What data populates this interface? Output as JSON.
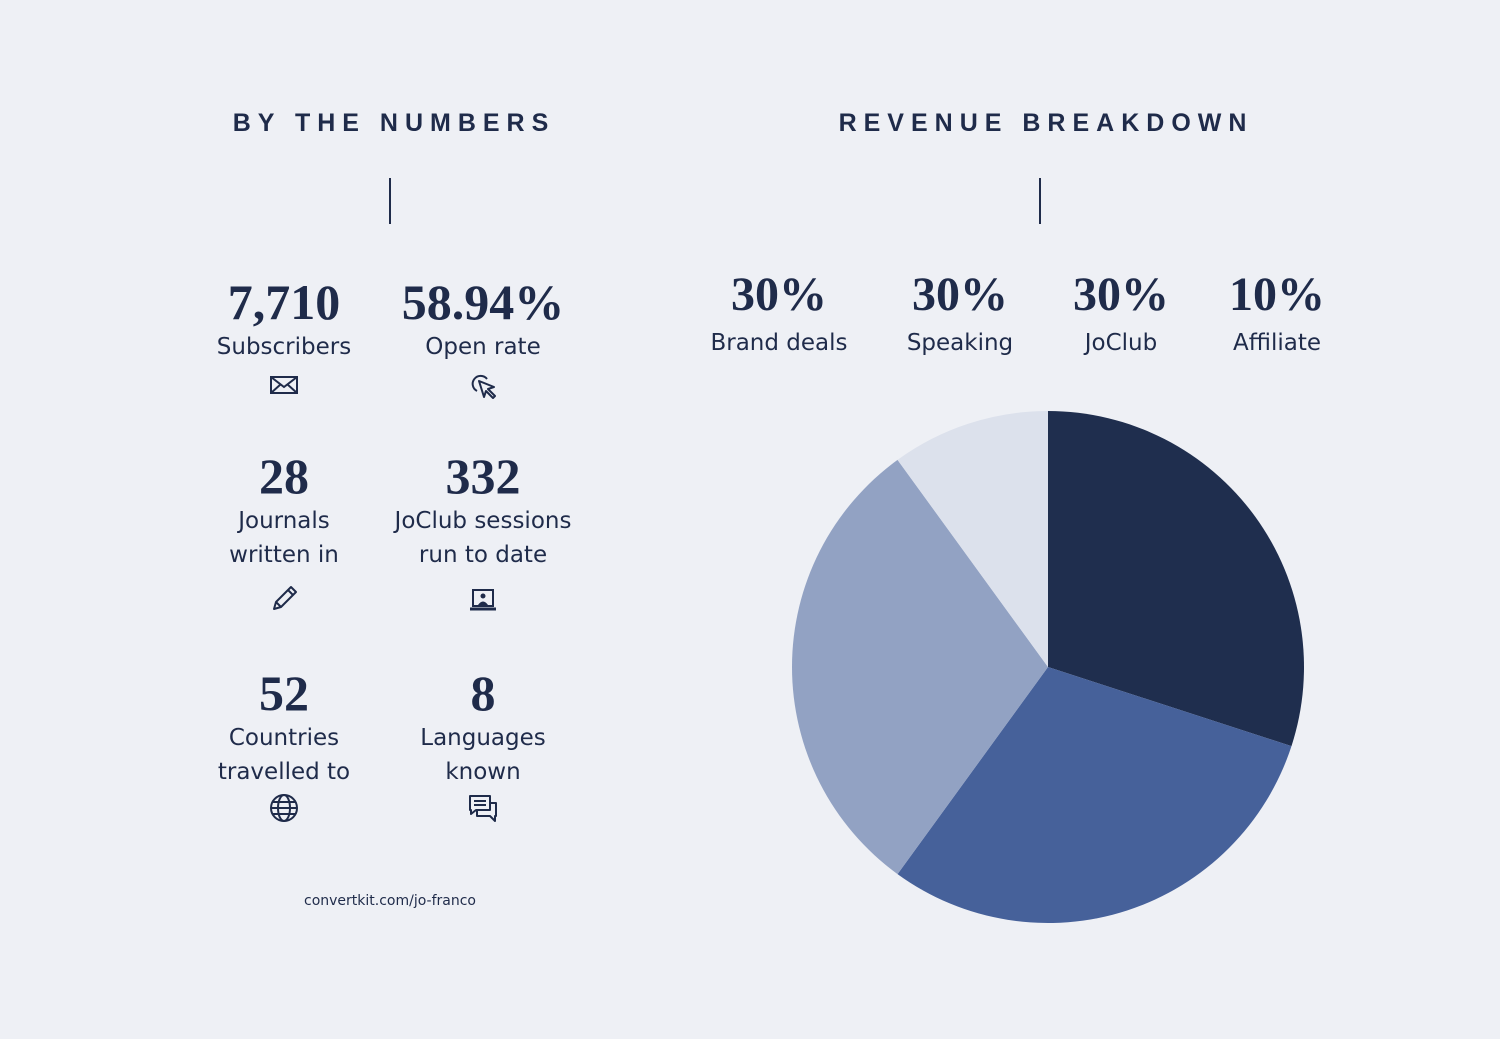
{
  "left": {
    "heading": "BY THE NUMBERS",
    "stats": [
      {
        "value": "7,710",
        "label": "Subscribers",
        "icon": "envelope-icon"
      },
      {
        "value": "58.94%",
        "label": "Open rate",
        "icon": "cursor-click-icon"
      },
      {
        "value": "28",
        "label": "Journals written in",
        "icon": "pencil-icon"
      },
      {
        "value": "332",
        "label": "JoClub sessions run to date",
        "icon": "laptop-user-icon"
      },
      {
        "value": "52",
        "label": "Countries travelled to",
        "icon": "globe-icon"
      },
      {
        "value": "8",
        "label": "Languages known",
        "icon": "chat-bubbles-icon"
      }
    ],
    "footer": "convertkit.com/jo-franco"
  },
  "right": {
    "heading": "REVENUE BREAKDOWN",
    "labels": [
      {
        "value": "30%",
        "label": "Brand deals"
      },
      {
        "value": "30%",
        "label": "Speaking"
      },
      {
        "value": "30%",
        "label": "JoClub"
      },
      {
        "value": "10%",
        "label": "Affiliate"
      }
    ]
  },
  "chart_data": {
    "type": "pie",
    "title": "REVENUE BREAKDOWN",
    "categories": [
      "Brand deals",
      "Speaking",
      "JoClub",
      "Affiliate"
    ],
    "values": [
      30,
      30,
      30,
      10
    ],
    "colors": [
      "#1f2e4e",
      "#46619a",
      "#92a2c3",
      "#dce1ec"
    ],
    "start": "12 o'clock, clockwise",
    "legend": "top"
  }
}
